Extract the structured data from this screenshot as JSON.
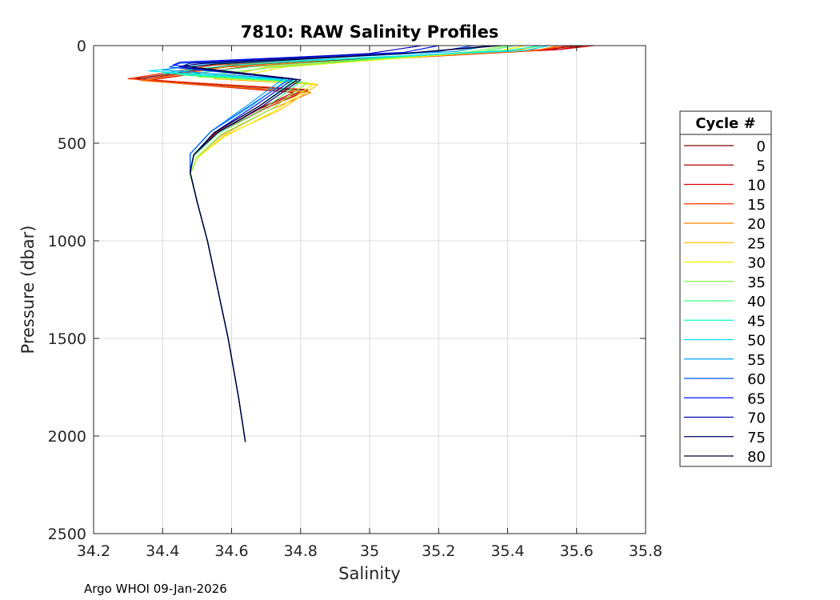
{
  "chart_data": {
    "type": "line",
    "title": "7810: RAW Salinity Profiles",
    "xlabel": "Salinity",
    "ylabel": "Pressure (dbar)",
    "xlim": [
      34.2,
      35.8
    ],
    "ylim": [
      0,
      2500
    ],
    "y_reversed": true,
    "grid": true,
    "xticks": [
      34.2,
      34.4,
      34.6,
      34.8,
      35,
      35.2,
      35.4,
      35.6,
      35.8
    ],
    "xtick_labels": [
      "34.2",
      "34.4",
      "34.6",
      "34.8",
      "35",
      "35.2",
      "35.4",
      "35.6",
      "35.8"
    ],
    "yticks": [
      0,
      500,
      1000,
      1500,
      2000,
      2500
    ],
    "ytick_labels": [
      "0",
      "500",
      "1000",
      "1500",
      "2000",
      "2500"
    ],
    "legend": {
      "title": "Cycle #",
      "placement": "right",
      "entries": [
        {
          "label": "0",
          "color": "#7f0000"
        },
        {
          "label": "5",
          "color": "#b00000"
        },
        {
          "label": "10",
          "color": "#e00000"
        },
        {
          "label": "15",
          "color": "#ff3000"
        },
        {
          "label": "20",
          "color": "#ff8000"
        },
        {
          "label": "25",
          "color": "#ffc000"
        },
        {
          "label": "30",
          "color": "#f0f000"
        },
        {
          "label": "35",
          "color": "#80ff40"
        },
        {
          "label": "40",
          "color": "#40ff80"
        },
        {
          "label": "45",
          "color": "#00ffc0"
        },
        {
          "label": "50",
          "color": "#00e0ff"
        },
        {
          "label": "55",
          "color": "#00a0ff"
        },
        {
          "label": "60",
          "color": "#0050ff"
        },
        {
          "label": "65",
          "color": "#0010ff"
        },
        {
          "label": "70",
          "color": "#0000b0"
        },
        {
          "label": "75",
          "color": "#000070"
        },
        {
          "label": "80",
          "color": "#000030"
        }
      ]
    },
    "series": [
      {
        "name": "0",
        "color": "#7f0000",
        "salinity": [
          35.62,
          35.55,
          34.6,
          34.32,
          34.82,
          34.7,
          34.55,
          34.49,
          34.48,
          34.5,
          34.53,
          34.56,
          34.59,
          34.62,
          34.64
        ],
        "pressure": [
          0,
          20,
          100,
          170,
          230,
          320,
          450,
          560,
          650,
          800,
          1000,
          1250,
          1500,
          1800,
          2030
        ]
      },
      {
        "name": "5",
        "color": "#b00000",
        "salinity": [
          35.6,
          35.52,
          34.62,
          34.33,
          34.8,
          34.68,
          34.55,
          34.49,
          34.48,
          34.5,
          34.53,
          34.56,
          34.59,
          34.62,
          34.64
        ],
        "pressure": [
          0,
          20,
          100,
          175,
          235,
          325,
          450,
          560,
          650,
          800,
          1000,
          1250,
          1500,
          1800,
          2030
        ]
      },
      {
        "name": "10",
        "color": "#e00000",
        "salinity": [
          35.65,
          35.55,
          34.65,
          34.35,
          34.78,
          34.67,
          34.55,
          34.49,
          34.48,
          34.5,
          34.53,
          34.56,
          34.59,
          34.62,
          34.64
        ],
        "pressure": [
          0,
          20,
          105,
          180,
          240,
          330,
          455,
          565,
          650,
          800,
          1000,
          1250,
          1500,
          1800,
          2030
        ]
      },
      {
        "name": "15",
        "color": "#ff3000",
        "salinity": [
          35.58,
          35.5,
          34.55,
          34.3,
          34.82,
          34.7,
          34.56,
          34.49,
          34.48,
          34.5,
          34.53,
          34.56,
          34.59,
          34.62,
          34.64
        ],
        "pressure": [
          0,
          20,
          100,
          170,
          225,
          320,
          450,
          565,
          650,
          800,
          1000,
          1250,
          1500,
          1800,
          2030
        ]
      },
      {
        "name": "20",
        "color": "#ff8000",
        "salinity": [
          35.55,
          35.48,
          34.58,
          34.34,
          34.83,
          34.71,
          34.57,
          34.5,
          34.48,
          34.5,
          34.53,
          34.56,
          34.59,
          34.62,
          34.64
        ],
        "pressure": [
          0,
          25,
          110,
          180,
          240,
          330,
          460,
          570,
          660,
          800,
          1000,
          1250,
          1500,
          1800,
          2030
        ]
      },
      {
        "name": "25",
        "color": "#ffc000",
        "salinity": [
          35.5,
          35.42,
          34.7,
          34.55,
          34.85,
          34.74,
          34.58,
          34.5,
          34.48,
          34.5,
          34.53,
          34.56,
          34.59,
          34.62,
          34.64
        ],
        "pressure": [
          0,
          25,
          110,
          170,
          200,
          330,
          460,
          575,
          660,
          800,
          1000,
          1250,
          1500,
          1800,
          2030
        ]
      },
      {
        "name": "30",
        "color": "#f0f000",
        "salinity": [
          35.45,
          35.38,
          34.75,
          34.6,
          34.84,
          34.73,
          34.58,
          34.5,
          34.48,
          34.5,
          34.53,
          34.56,
          34.59,
          34.62,
          34.64
        ],
        "pressure": [
          0,
          25,
          110,
          165,
          195,
          330,
          465,
          575,
          660,
          800,
          1000,
          1250,
          1500,
          1800,
          2030
        ]
      },
      {
        "name": "35",
        "color": "#80ff40",
        "salinity": [
          35.4,
          35.3,
          34.7,
          34.5,
          34.82,
          34.72,
          34.57,
          34.5,
          34.48,
          34.5,
          34.53,
          34.56,
          34.59,
          34.62,
          34.64
        ],
        "pressure": [
          0,
          30,
          115,
          160,
          190,
          320,
          455,
          570,
          660,
          800,
          1000,
          1250,
          1500,
          1800,
          2030
        ]
      },
      {
        "name": "40",
        "color": "#40ff80",
        "salinity": [
          35.42,
          35.33,
          34.65,
          34.45,
          34.8,
          34.7,
          34.56,
          34.49,
          34.48,
          34.5,
          34.53,
          34.56,
          34.59,
          34.62,
          34.64
        ],
        "pressure": [
          0,
          30,
          110,
          150,
          185,
          315,
          450,
          565,
          655,
          800,
          1000,
          1250,
          1500,
          1800,
          2030
        ]
      },
      {
        "name": "45",
        "color": "#00ffc0",
        "salinity": [
          35.5,
          35.4,
          34.6,
          34.4,
          34.78,
          34.68,
          34.55,
          34.49,
          34.48,
          34.5,
          34.53,
          34.56,
          34.59,
          34.62,
          34.64
        ],
        "pressure": [
          0,
          25,
          100,
          140,
          180,
          310,
          445,
          560,
          650,
          800,
          1000,
          1250,
          1500,
          1800,
          2030
        ]
      },
      {
        "name": "50",
        "color": "#00e0ff",
        "salinity": [
          35.52,
          35.45,
          34.55,
          34.36,
          34.76,
          34.66,
          34.54,
          34.48,
          34.48,
          34.5,
          34.53,
          34.56,
          34.59,
          34.62,
          34.64
        ],
        "pressure": [
          0,
          25,
          95,
          130,
          175,
          305,
          440,
          555,
          650,
          800,
          1000,
          1250,
          1500,
          1800,
          2030
        ]
      },
      {
        "name": "55",
        "color": "#00a0ff",
        "salinity": [
          35.35,
          35.25,
          34.5,
          34.4,
          34.75,
          34.65,
          34.54,
          34.48,
          34.48,
          34.5,
          34.53,
          34.56,
          34.59,
          34.62,
          34.64
        ],
        "pressure": [
          0,
          30,
          95,
          125,
          170,
          300,
          440,
          555,
          650,
          800,
          1000,
          1250,
          1500,
          1800,
          2030
        ]
      },
      {
        "name": "60",
        "color": "#0050ff",
        "salinity": [
          35.3,
          35.2,
          34.45,
          34.42,
          34.77,
          34.66,
          34.54,
          34.48,
          34.48,
          34.5,
          34.53,
          34.56,
          34.59,
          34.62,
          34.64
        ],
        "pressure": [
          0,
          30,
          90,
          110,
          170,
          300,
          440,
          555,
          650,
          800,
          1000,
          1250,
          1500,
          1800,
          2030
        ]
      },
      {
        "name": "65",
        "color": "#0010ff",
        "salinity": [
          35.2,
          35.1,
          34.45,
          34.43,
          34.78,
          34.67,
          34.55,
          34.49,
          34.48,
          34.5,
          34.53,
          34.56,
          34.59,
          34.62,
          34.64
        ],
        "pressure": [
          0,
          35,
          85,
          100,
          170,
          305,
          445,
          560,
          650,
          800,
          1000,
          1250,
          1500,
          1800,
          2030
        ]
      },
      {
        "name": "70",
        "color": "#0000b0",
        "salinity": [
          35.15,
          35.0,
          34.48,
          34.45,
          34.79,
          34.68,
          34.55,
          34.49,
          34.48,
          34.5,
          34.53,
          34.56,
          34.59,
          34.62,
          34.64
        ],
        "pressure": [
          0,
          40,
          90,
          110,
          175,
          310,
          445,
          560,
          650,
          800,
          1000,
          1250,
          1500,
          1800,
          2030
        ]
      },
      {
        "name": "75",
        "color": "#000070",
        "salinity": [
          35.36,
          35.1,
          34.52,
          34.46,
          34.8,
          34.69,
          34.56,
          34.49,
          34.48,
          34.5,
          34.53,
          34.56,
          34.59,
          34.62,
          34.64
        ],
        "pressure": [
          0,
          40,
          90,
          105,
          175,
          310,
          445,
          560,
          650,
          800,
          1000,
          1250,
          1500,
          1800,
          2030
        ]
      },
      {
        "name": "80",
        "color": "#000030",
        "salinity": [
          35.38,
          35.1,
          34.55,
          34.48,
          34.79,
          34.68,
          34.55,
          34.49,
          34.48,
          34.5,
          34.53,
          34.56,
          34.59,
          34.62,
          34.64
        ],
        "pressure": [
          0,
          40,
          95,
          110,
          175,
          310,
          445,
          560,
          650,
          800,
          1000,
          1250,
          1500,
          1800,
          2030
        ]
      }
    ]
  },
  "footer": "Argo WHOI 09-Jan-2026"
}
